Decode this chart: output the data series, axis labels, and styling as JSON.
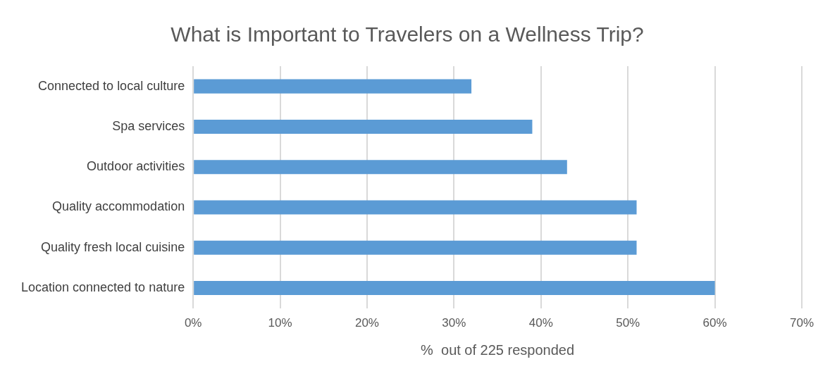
{
  "chart_data": {
    "type": "bar",
    "orientation": "horizontal",
    "title": "What is Important to Travelers on a Wellness Trip?",
    "xlabel": "%  out of 225 responded",
    "categories": [
      "Connected to local culture",
      "Spa services",
      "Outdoor activities",
      "Quality accommodation",
      "Quality fresh local cuisine",
      "Location connected to nature"
    ],
    "values": [
      32,
      39,
      43,
      51,
      51,
      60
    ],
    "color": "#5b9bd5",
    "xlim": [
      0,
      70
    ],
    "xticks": [
      {
        "value": 0,
        "label": "0%"
      },
      {
        "value": 10,
        "label": "10%"
      },
      {
        "value": 20,
        "label": "20%"
      },
      {
        "value": 30,
        "label": "30%"
      },
      {
        "value": 40,
        "label": "40%"
      },
      {
        "value": 50,
        "label": "50%"
      },
      {
        "value": 60,
        "label": "60%"
      },
      {
        "value": 70,
        "label": "70%"
      }
    ],
    "grid": "x",
    "legend": false
  }
}
